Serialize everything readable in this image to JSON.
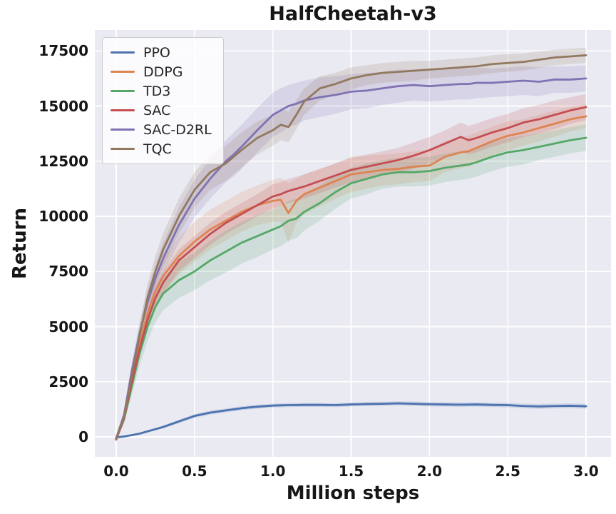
{
  "chart_data": {
    "type": "line",
    "title": "HalfCheetah-v3",
    "xlabel": "Million steps",
    "ylabel": "Return",
    "grid": true,
    "legend_position": "upper left",
    "plot_background": "#EAEAF2",
    "gridline_color": "#FFFFFF",
    "xlim": [
      -0.15,
      3.15
    ],
    "ylim": [
      -900,
      18450
    ],
    "xticks": {
      "values": [
        0.0,
        0.5,
        1.0,
        1.5,
        2.0,
        2.5,
        3.0
      ],
      "labels": [
        "0.0",
        "0.5",
        "1.0",
        "1.5",
        "2.0",
        "2.5",
        "3.0"
      ]
    },
    "yticks": {
      "values": [
        0,
        2500,
        5000,
        7500,
        10000,
        12500,
        15000,
        17500
      ],
      "labels": [
        "0",
        "2500",
        "5000",
        "7500",
        "10000",
        "12500",
        "15000",
        "17500"
      ]
    },
    "x": [
      0,
      0.05,
      0.1,
      0.15,
      0.2,
      0.25,
      0.3,
      0.4,
      0.5,
      0.6,
      0.7,
      0.75,
      0.8,
      0.9,
      1.0,
      1.05,
      1.1,
      1.15,
      1.2,
      1.3,
      1.4,
      1.5,
      1.6,
      1.7,
      1.8,
      1.9,
      2.0,
      2.1,
      2.2,
      2.25,
      2.3,
      2.4,
      2.5,
      2.6,
      2.7,
      2.8,
      2.9,
      3.0
    ],
    "series": [
      {
        "name": "PPO",
        "color": "#4C72B0",
        "values": [
          -20,
          20,
          80,
          150,
          250,
          350,
          450,
          700,
          950,
          1100,
          1200,
          1250,
          1300,
          1370,
          1420,
          1430,
          1440,
          1445,
          1450,
          1450,
          1440,
          1470,
          1490,
          1500,
          1520,
          1500,
          1480,
          1470,
          1460,
          1465,
          1470,
          1450,
          1440,
          1400,
          1380,
          1400,
          1410,
          1390
        ],
        "sigma": [
          5,
          15,
          25,
          35,
          45,
          55,
          65,
          75,
          85,
          90,
          90,
          90,
          90,
          90,
          90,
          90,
          90,
          90,
          90,
          90,
          90,
          90,
          90,
          95,
          100,
          100,
          100,
          100,
          100,
          100,
          100,
          100,
          100,
          110,
          110,
          110,
          110,
          110
        ]
      },
      {
        "name": "DDPG",
        "color": "#DD8452",
        "values": [
          -80,
          900,
          2600,
          4200,
          5600,
          6600,
          7300,
          8200,
          8850,
          9400,
          9800,
          10000,
          10200,
          10500,
          10700,
          10750,
          10150,
          10700,
          11000,
          11300,
          11600,
          11900,
          12000,
          12100,
          12150,
          12250,
          12300,
          12700,
          12900,
          12950,
          13100,
          13400,
          13650,
          13800,
          14000,
          14200,
          14400,
          14530
        ],
        "sigma": [
          10,
          200,
          400,
          500,
          600,
          700,
          800,
          850,
          900,
          900,
          900,
          900,
          900,
          900,
          950,
          1000,
          1350,
          1000,
          900,
          850,
          800,
          800,
          750,
          700,
          700,
          700,
          700,
          700,
          700,
          700,
          700,
          650,
          650,
          600,
          600,
          600,
          550,
          550
        ]
      },
      {
        "name": "TD3",
        "color": "#55A868",
        "values": [
          -100,
          800,
          2300,
          3800,
          5000,
          5900,
          6500,
          7100,
          7500,
          8000,
          8400,
          8600,
          8800,
          9100,
          9400,
          9550,
          9800,
          9900,
          10200,
          10600,
          11100,
          11500,
          11700,
          11900,
          12000,
          12000,
          12050,
          12200,
          12300,
          12350,
          12450,
          12700,
          12900,
          13000,
          13150,
          13300,
          13450,
          13560
        ],
        "sigma": [
          10,
          200,
          400,
          550,
          650,
          700,
          750,
          800,
          850,
          900,
          950,
          950,
          950,
          950,
          900,
          900,
          900,
          900,
          850,
          800,
          750,
          700,
          700,
          650,
          650,
          650,
          650,
          650,
          650,
          650,
          650,
          650,
          650,
          650,
          600,
          600,
          600,
          600
        ]
      },
      {
        "name": "SAC",
        "color": "#C44E52",
        "values": [
          -120,
          850,
          2500,
          4000,
          5300,
          6300,
          7000,
          8000,
          8600,
          9200,
          9700,
          9900,
          10100,
          10500,
          10900,
          11000,
          11150,
          11250,
          11350,
          11600,
          11850,
          12100,
          12250,
          12400,
          12550,
          12750,
          13000,
          13300,
          13600,
          13450,
          13550,
          13800,
          14000,
          14250,
          14400,
          14600,
          14800,
          14950
        ],
        "sigma": [
          10,
          150,
          300,
          400,
          450,
          500,
          500,
          500,
          500,
          500,
          500,
          500,
          500,
          500,
          550,
          550,
          550,
          550,
          550,
          550,
          550,
          550,
          550,
          550,
          550,
          600,
          600,
          600,
          650,
          650,
          650,
          650,
          650,
          650,
          650,
          650,
          600,
          600
        ]
      },
      {
        "name": "SAC-D2RL",
        "color": "#8172B3",
        "values": [
          -60,
          1000,
          3000,
          4700,
          6100,
          7200,
          8100,
          9600,
          10800,
          11700,
          12500,
          12800,
          13150,
          13900,
          14600,
          14800,
          15000,
          15100,
          15250,
          15400,
          15500,
          15650,
          15700,
          15800,
          15900,
          15950,
          15900,
          15950,
          16000,
          16000,
          16050,
          16050,
          16100,
          16150,
          16100,
          16200,
          16200,
          16250
        ],
        "sigma": [
          10,
          200,
          400,
          500,
          600,
          650,
          700,
          800,
          850,
          900,
          950,
          1000,
          1000,
          1000,
          1000,
          1000,
          950,
          950,
          900,
          900,
          850,
          800,
          800,
          750,
          750,
          700,
          700,
          700,
          700,
          700,
          700,
          650,
          650,
          650,
          650,
          600,
          600,
          600
        ]
      },
      {
        "name": "TQC",
        "color": "#937860",
        "values": [
          -70,
          900,
          2800,
          4600,
          6300,
          7500,
          8500,
          10000,
          11200,
          12000,
          12400,
          12700,
          13000,
          13550,
          13900,
          14150,
          14050,
          14600,
          15200,
          15800,
          16000,
          16250,
          16400,
          16500,
          16550,
          16600,
          16650,
          16700,
          16750,
          16780,
          16800,
          16900,
          16950,
          17000,
          17100,
          17200,
          17250,
          17300
        ],
        "sigma": [
          10,
          200,
          400,
          550,
          650,
          700,
          750,
          800,
          800,
          800,
          800,
          800,
          800,
          750,
          700,
          700,
          700,
          650,
          600,
          550,
          500,
          500,
          450,
          450,
          450,
          450,
          400,
          400,
          400,
          400,
          400,
          400,
          400,
          380,
          380,
          350,
          350,
          350
        ]
      }
    ]
  }
}
